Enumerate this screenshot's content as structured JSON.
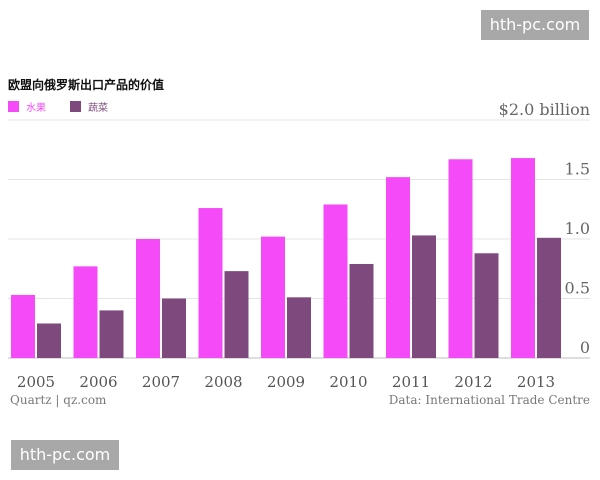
{
  "chart_data": {
    "type": "bar",
    "title": "欧盟向俄罗斯出口产品的价值",
    "categories": [
      "2005",
      "2006",
      "2007",
      "2008",
      "2009",
      "2010",
      "2011",
      "2012",
      "2013"
    ],
    "series": [
      {
        "name": "水果",
        "color": "#f54af7",
        "values": [
          0.53,
          0.77,
          1.0,
          1.26,
          1.02,
          1.29,
          1.52,
          1.67,
          1.68
        ]
      },
      {
        "name": "蔬菜",
        "color": "#7e4a7e",
        "values": [
          0.29,
          0.4,
          0.5,
          0.73,
          0.51,
          0.79,
          1.03,
          0.88,
          1.01
        ]
      }
    ],
    "y_ticks": [
      "0",
      "0.5",
      "1.0",
      "1.5",
      "$2.0 billion"
    ],
    "ylim": [
      0,
      2.0
    ],
    "xlabel": "",
    "ylabel": "",
    "grid": true
  },
  "footer": {
    "source_left": "Quartz | qz.com",
    "source_right": "Data: International Trade Centre"
  },
  "watermarks": {
    "top": "hth-pc.com",
    "bottom": "hth-pc.com"
  }
}
